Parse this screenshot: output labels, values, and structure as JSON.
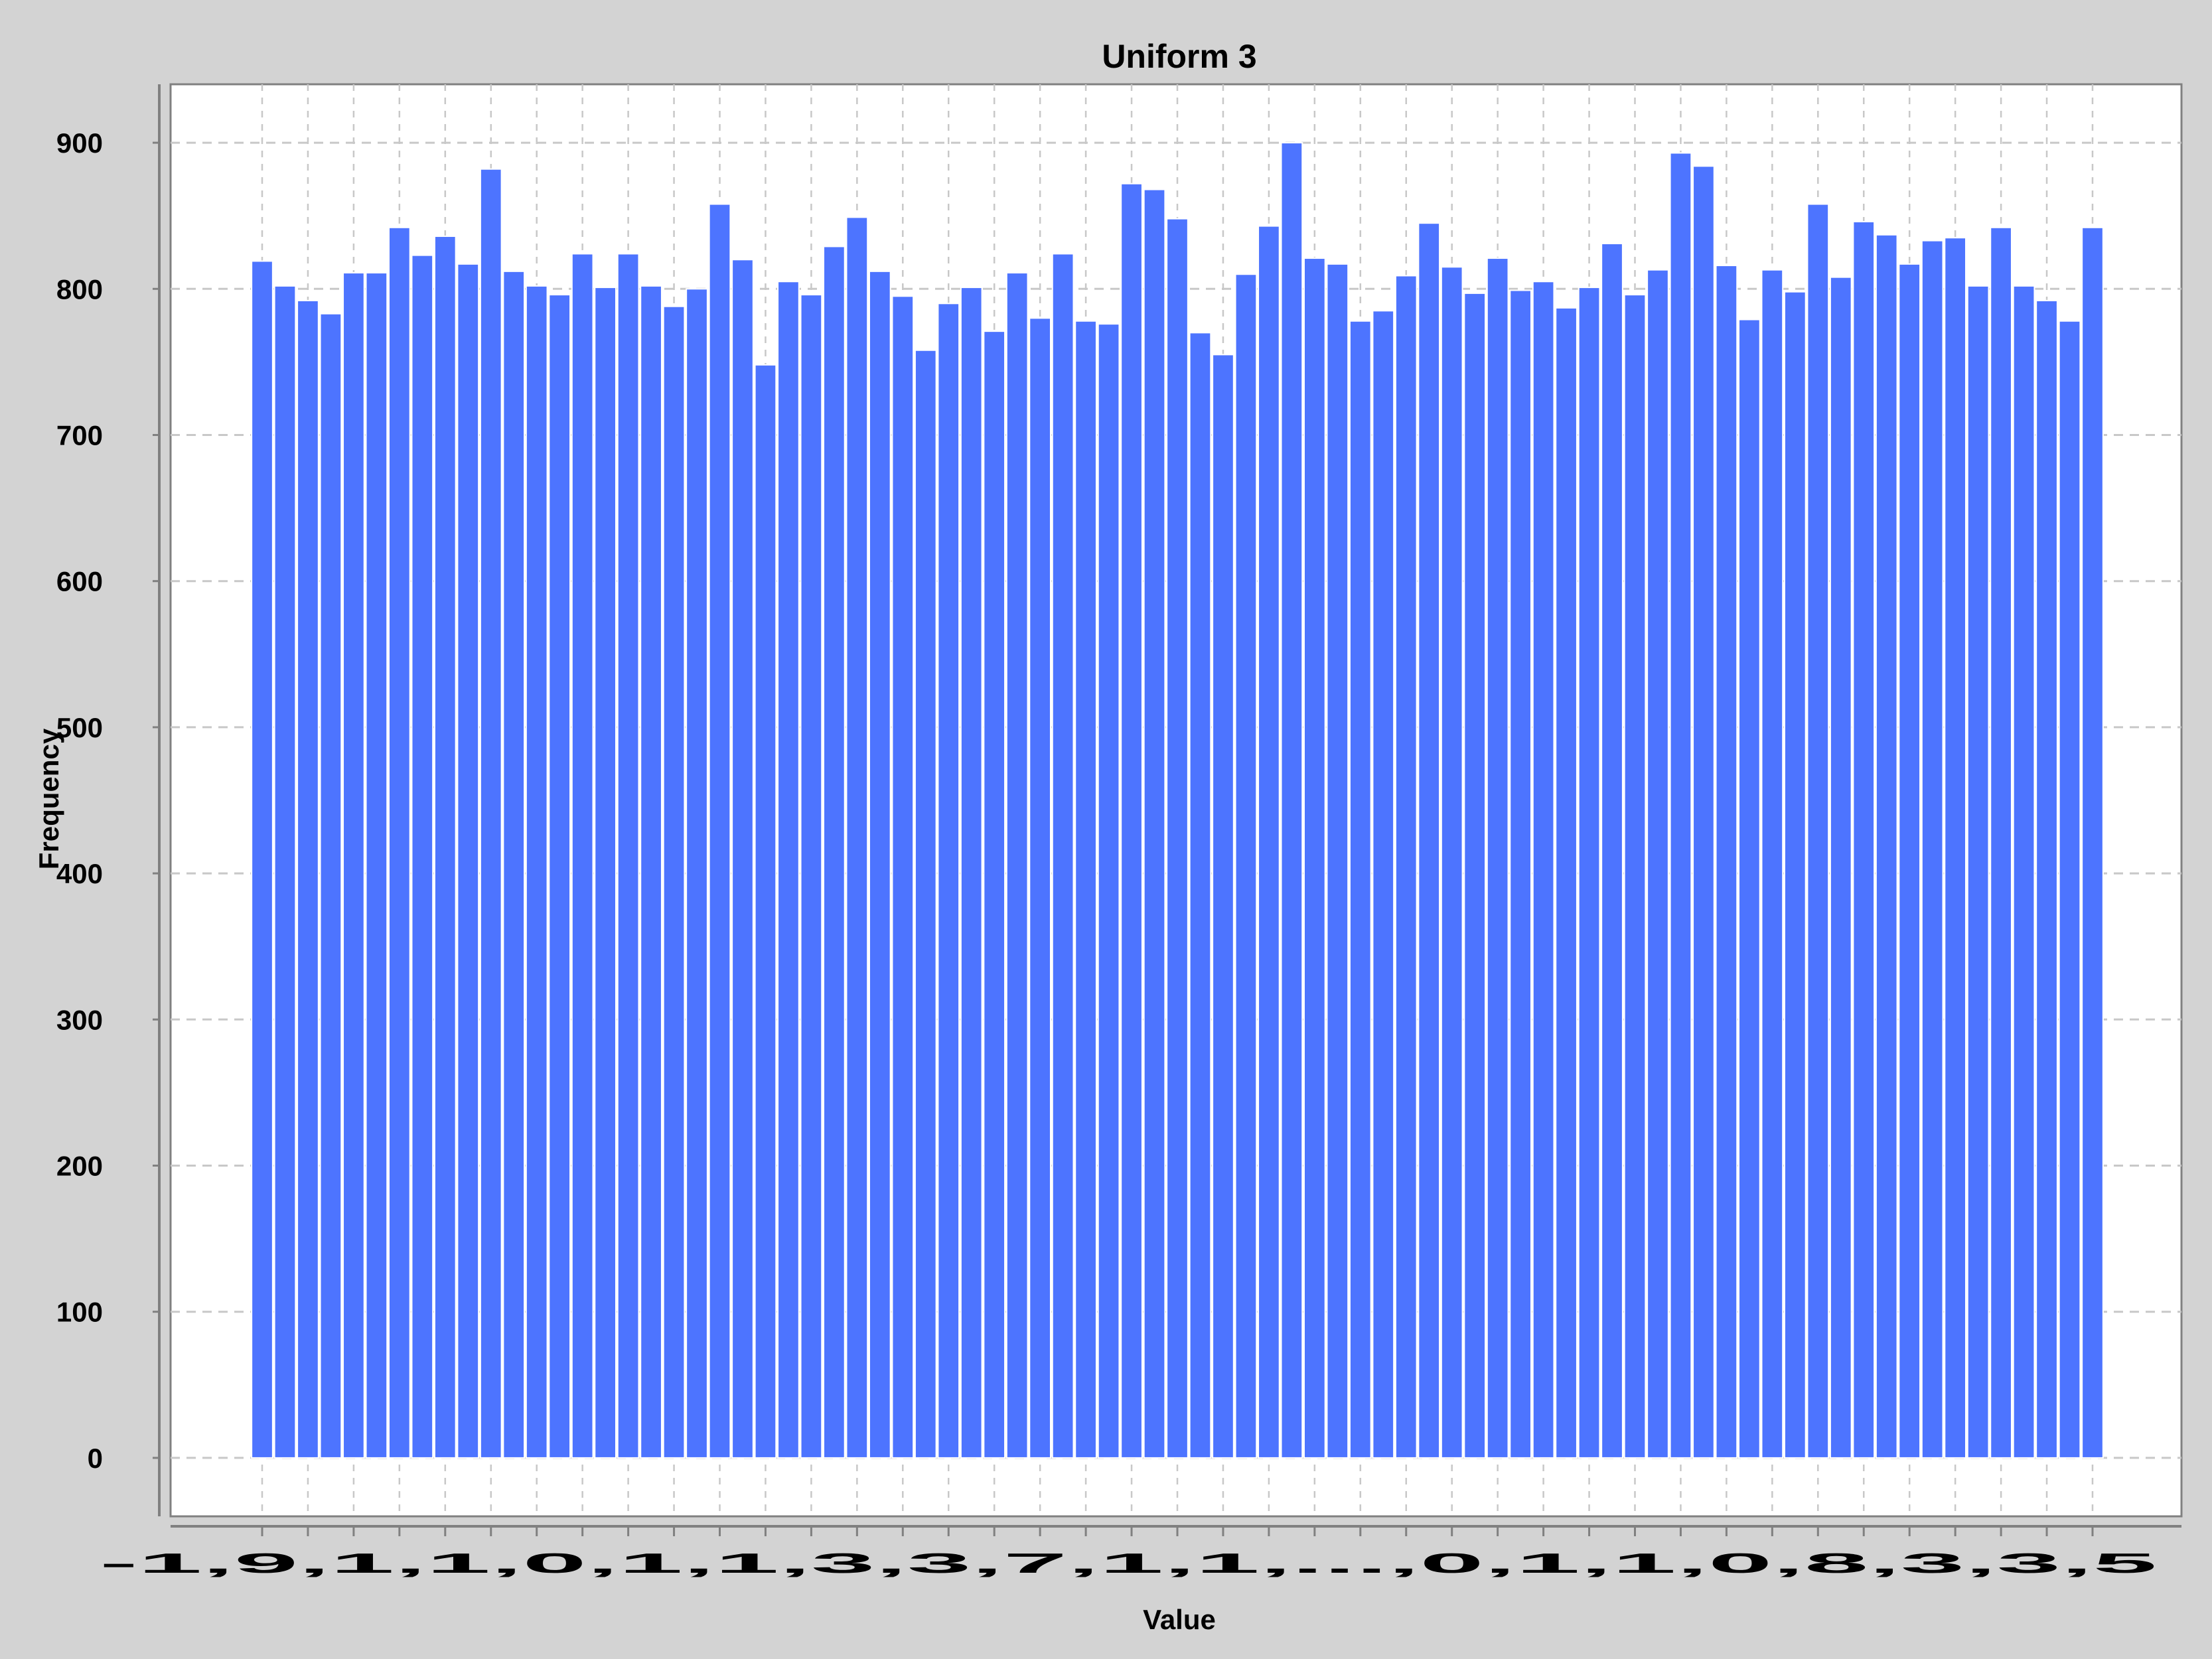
{
  "chart_data": {
    "type": "bar",
    "title": "Uniform 3",
    "xlabel": "Value",
    "ylabel": "Frequency",
    "ylim": [
      -40,
      940
    ],
    "yticks": [
      0,
      100,
      200,
      300,
      400,
      500,
      600,
      700,
      800,
      900
    ],
    "grid": true,
    "legend": "none",
    "values": [
      819,
      802,
      792,
      783,
      811,
      811,
      842,
      823,
      836,
      817,
      882,
      812,
      802,
      796,
      824,
      801,
      824,
      802,
      788,
      800,
      858,
      820,
      748,
      805,
      796,
      829,
      849,
      812,
      795,
      758,
      790,
      801,
      771,
      811,
      780,
      824,
      778,
      776,
      872,
      868,
      848,
      770,
      755,
      810,
      843,
      900,
      821,
      817,
      778,
      785,
      809,
      845,
      815,
      797,
      821,
      799,
      805,
      787,
      801,
      831,
      796,
      813,
      893,
      884,
      816,
      779,
      813,
      798,
      858,
      808,
      846,
      837,
      817,
      833,
      835,
      802,
      842,
      802,
      792,
      778,
      842
    ],
    "x_tick_labels_first": "-1,9",
    "x_tick_labels_last": "335",
    "x_tick_labels_visible": "-1,9,1,1,0,1,1,3,3,7,1,1,...,0,1,1,0,8,3,3,5"
  },
  "colors": {
    "background": "#d3d3d3",
    "plot_background": "#ffffff",
    "bar": "#4d74ff",
    "grid": "#c8c8c8",
    "axis": "#808080"
  }
}
